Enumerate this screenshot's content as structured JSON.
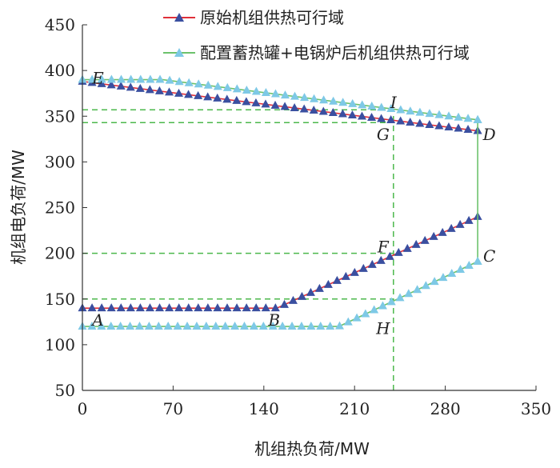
{
  "chart_data": {
    "type": "line",
    "xlabel": "机组热负荷/MW",
    "ylabel": "机组电负荷/MW",
    "xlim": [
      0,
      350
    ],
    "ylim": [
      50,
      450
    ],
    "xticks": [
      0,
      70,
      140,
      210,
      280,
      350
    ],
    "yticks": [
      50,
      100,
      150,
      200,
      250,
      300,
      350,
      400,
      450
    ],
    "grid": false,
    "legend_position": "top-right",
    "series": [
      {
        "name": "原始机组供热可行域",
        "color": "#e0303a",
        "marker_color": "#3a4fa0",
        "marker": "triangle",
        "segments": [
          {
            "x": [
              0,
              305
            ],
            "y": [
              388,
              334
            ]
          },
          {
            "x": [
              0,
              150,
              305
            ],
            "y": [
              140,
              140,
              240
            ]
          }
        ]
      },
      {
        "name": "配置蓄热罐+电锅炉后机组供热可行域",
        "color": "#6cc26c",
        "marker_color": "#7ec9e6",
        "marker": "triangle",
        "segments": [
          {
            "x": [
              0,
              62,
              305
            ],
            "y": [
              390,
              390,
              346
            ]
          },
          {
            "x": [
              0,
              198,
              305
            ],
            "y": [
              120,
              120,
              191
            ]
          },
          {
            "x": [
              305,
              305
            ],
            "y": [
              191,
              346
            ]
          }
        ]
      }
    ],
    "reference_lines": {
      "color": "#4cb84c",
      "style": "dashed",
      "horizontal": [
        {
          "y": 357,
          "x_to": 240
        },
        {
          "y": 343,
          "x_to": 240
        },
        {
          "y": 200,
          "x_to": 240
        },
        {
          "y": 150,
          "x_to": 240
        }
      ],
      "vertical": [
        {
          "x": 240,
          "y_from": 50,
          "y_to": 357
        }
      ]
    },
    "annotations": [
      {
        "text": "E",
        "x": 12,
        "y": 392
      },
      {
        "text": "I",
        "x": 240,
        "y": 365
      },
      {
        "text": "G",
        "x": 232,
        "y": 330
      },
      {
        "text": "D",
        "x": 314,
        "y": 330
      },
      {
        "text": "F",
        "x": 232,
        "y": 207
      },
      {
        "text": "C",
        "x": 314,
        "y": 197
      },
      {
        "text": "B",
        "x": 148,
        "y": 127
      },
      {
        "text": "H",
        "x": 232,
        "y": 118
      },
      {
        "text": "A",
        "x": 12,
        "y": 127
      }
    ]
  }
}
